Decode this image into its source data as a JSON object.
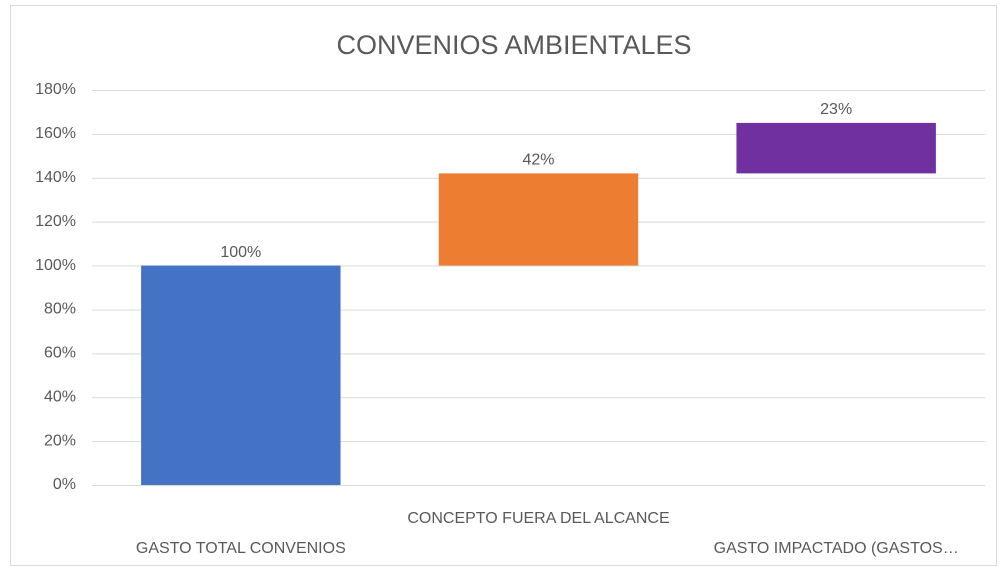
{
  "chart_data": {
    "type": "waterfall",
    "title": "CONVENIOS AMBIENTALES",
    "categories": [
      "GASTO TOTAL CONVENIOS",
      "CONCEPTO FUERA DEL ALCANCE",
      "GASTO IMPACTADO (GASTOS…"
    ],
    "values": [
      100,
      42,
      23
    ],
    "value_labels": [
      "100%",
      "42%",
      "23%"
    ],
    "colors": [
      "#4472c4",
      "#ed7d31",
      "#7030a0"
    ],
    "ylim": [
      0,
      180
    ],
    "yticks": [
      {
        "value": 0,
        "label": "0%"
      },
      {
        "value": 20,
        "label": "20%"
      },
      {
        "value": 40,
        "label": "40%"
      },
      {
        "value": 60,
        "label": "60%"
      },
      {
        "value": 80,
        "label": "80%"
      },
      {
        "value": 100,
        "label": "100%"
      },
      {
        "value": 120,
        "label": "120%"
      },
      {
        "value": 140,
        "label": "140%"
      },
      {
        "value": 160,
        "label": "160%"
      },
      {
        "value": 180,
        "label": "180%"
      }
    ],
    "grid": true
  }
}
